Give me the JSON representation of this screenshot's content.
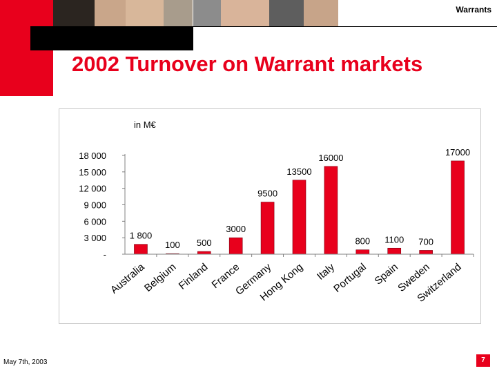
{
  "header": {
    "section": "Warrants"
  },
  "slide": {
    "title": "2002 Turnover on Warrant markets"
  },
  "footer": {
    "date": "May 7th, 2003",
    "page": "7"
  },
  "colors": {
    "brand_red": "#e8001c",
    "bar_red": "#e8001c"
  },
  "chart_data": {
    "type": "bar",
    "title": "",
    "unit_label": "in M€",
    "categories": [
      "Australia",
      "Belgium",
      "Finland",
      "France",
      "Germany",
      "Hong Kong",
      "Italy",
      "Portugal",
      "Spain",
      "Sweden",
      "Switzerland"
    ],
    "values": [
      1800,
      100,
      500,
      3000,
      9500,
      13500,
      16000,
      800,
      1100,
      700,
      17000
    ],
    "data_labels": [
      "1 800",
      "100",
      "500",
      "3000",
      "9500",
      "13500",
      "16000",
      "800",
      "1100",
      "700",
      "17000"
    ],
    "yticks": [
      "-",
      "3 000",
      "6 000",
      "9 000",
      "12 000",
      "15 000",
      "18 000"
    ],
    "ytick_values": [
      0,
      3000,
      6000,
      9000,
      12000,
      15000,
      18000
    ],
    "ylim": [
      0,
      18000
    ],
    "grid": false,
    "legend": "none"
  }
}
